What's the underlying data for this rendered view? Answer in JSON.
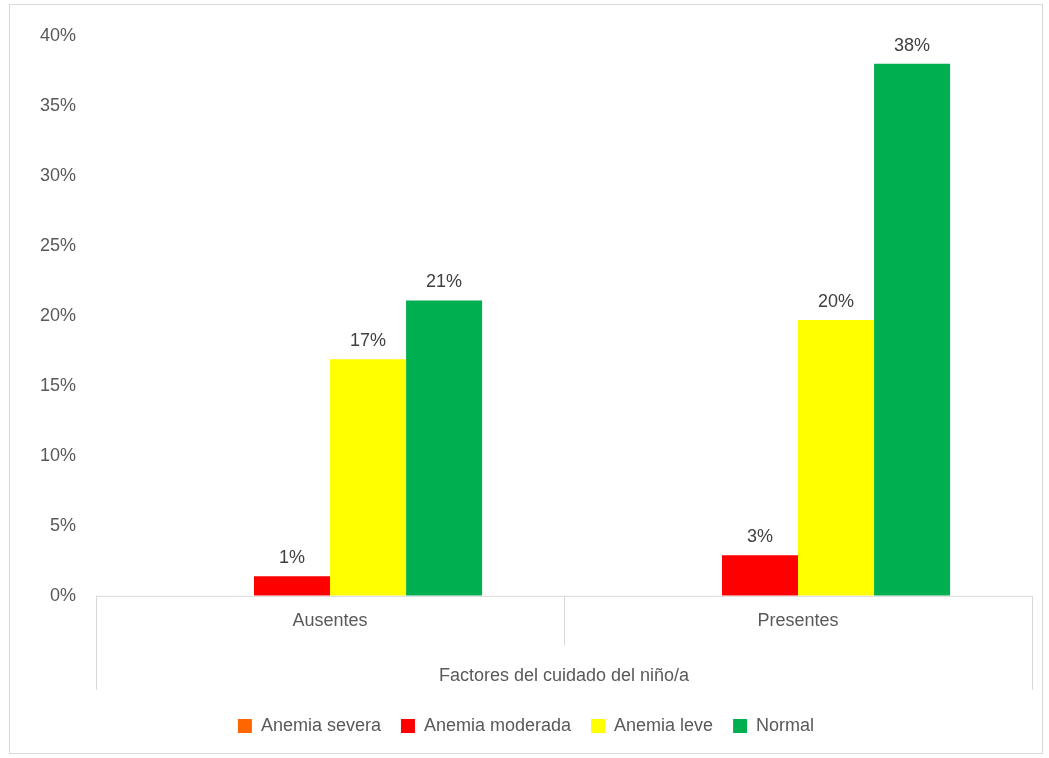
{
  "chart_data": {
    "type": "bar",
    "xlabel": "Factores del cuidado del niño/a",
    "categories": [
      "Ausentes",
      "Presentes"
    ],
    "series": [
      {
        "name": "Anemia severa",
        "color": "#ff6600",
        "values": [
          0,
          0
        ],
        "value_labels": [
          null,
          null
        ]
      },
      {
        "name": "Anemia moderada",
        "color": "#ff0000",
        "values": [
          1.4,
          2.9
        ],
        "value_labels": [
          "1%",
          "3%"
        ]
      },
      {
        "name": "Anemia leve",
        "color": "#ffff00",
        "values": [
          16.9,
          19.7
        ],
        "value_labels": [
          "17%",
          "20%"
        ]
      },
      {
        "name": "Normal",
        "color": "#00b050",
        "values": [
          21.1,
          38
        ],
        "value_labels": [
          "21%",
          "38%"
        ]
      }
    ],
    "ylim": [
      0,
      40
    ],
    "yticks": [
      {
        "value": 0,
        "label": "0%"
      },
      {
        "value": 5,
        "label": "5%"
      },
      {
        "value": 10,
        "label": "10%"
      },
      {
        "value": 15,
        "label": "15%"
      },
      {
        "value": 20,
        "label": "20%"
      },
      {
        "value": 25,
        "label": "25%"
      },
      {
        "value": 30,
        "label": "30%"
      },
      {
        "value": 35,
        "label": "35%"
      },
      {
        "value": 40,
        "label": "40%"
      }
    ],
    "grid": false,
    "legend": "bottom"
  }
}
